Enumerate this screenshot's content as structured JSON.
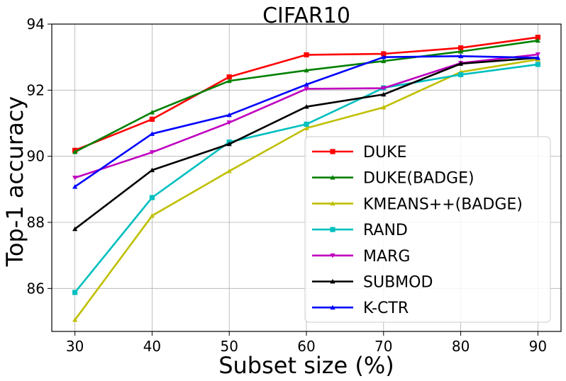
{
  "chart_data": {
    "type": "line",
    "title": "CIFAR10",
    "xlabel": "Subset size (%)",
    "ylabel": "Top-1 accuracy",
    "x": [
      30,
      40,
      50,
      60,
      70,
      80,
      90
    ],
    "xlim": [
      27,
      93
    ],
    "ylim": [
      84.7,
      94
    ],
    "xticks": [
      "30",
      "40",
      "50",
      "60",
      "70",
      "80",
      "90"
    ],
    "yticks": [
      "86",
      "88",
      "90",
      "92",
      "94"
    ],
    "grid": true,
    "legend_position": "lower-right",
    "series": [
      {
        "name": "DUKE",
        "color": "#ff0000",
        "marker": "square",
        "values": [
          90.18,
          91.12,
          92.4,
          93.07,
          93.1,
          93.28,
          93.6
        ]
      },
      {
        "name": "DUKE(BADGE)",
        "color": "#008000",
        "marker": "triangle",
        "values": [
          90.13,
          91.33,
          92.28,
          92.6,
          92.88,
          93.17,
          93.5
        ]
      },
      {
        "name": "KMEANS++(BADGE)",
        "color": "#bfbf00",
        "marker": "triangle",
        "values": [
          85.05,
          88.2,
          89.55,
          90.85,
          91.48,
          92.55,
          92.93
        ]
      },
      {
        "name": "RAND",
        "color": "#00bfbf",
        "marker": "square",
        "values": [
          85.88,
          88.75,
          90.43,
          90.97,
          92.07,
          92.47,
          92.78
        ]
      },
      {
        "name": "MARG",
        "color": "#bf00bf",
        "marker": "triangle-down",
        "values": [
          89.35,
          90.12,
          91.02,
          92.04,
          92.06,
          92.82,
          93.08
        ]
      },
      {
        "name": "SUBMOD",
        "color": "#000000",
        "marker": "triangle",
        "values": [
          87.8,
          89.58,
          90.37,
          91.5,
          91.87,
          92.8,
          92.98
        ]
      },
      {
        "name": "K-CTR",
        "color": "#0000ff",
        "marker": "triangle",
        "values": [
          89.08,
          90.68,
          91.25,
          92.17,
          93.0,
          93.03,
          92.98
        ]
      }
    ]
  }
}
